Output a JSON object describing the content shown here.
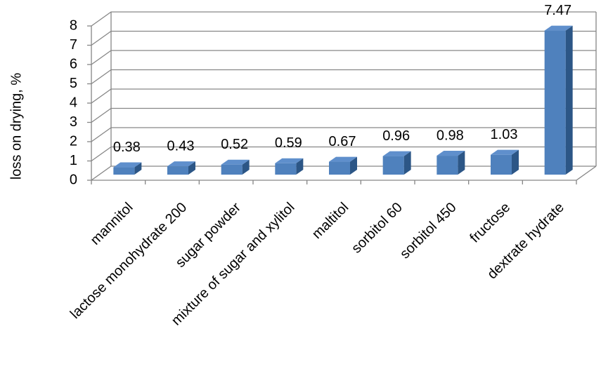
{
  "chart_data": {
    "type": "bar3d",
    "y_label": "loss on drying, %",
    "categories": [
      "mannitol",
      "lactose monohydrate 200",
      "sugar powder",
      "mixture of sugar and xylitol",
      "maltitol",
      "sorbitol 60",
      "sorbitol 450",
      "fructose",
      "dextrate hydrate"
    ],
    "values": [
      0.38,
      0.43,
      0.52,
      0.59,
      0.67,
      0.96,
      0.98,
      1.03,
      7.47
    ],
    "color": "#4f81bd",
    "ylim": [
      0,
      8
    ],
    "yticks": [
      0,
      1,
      2,
      3,
      4,
      5,
      6,
      7,
      8
    ],
    "grid": true
  }
}
